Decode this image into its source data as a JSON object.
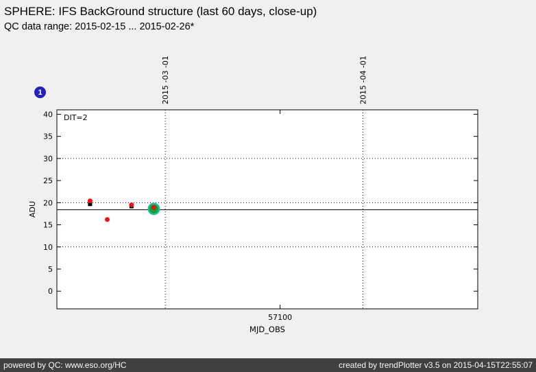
{
  "header": {
    "title": "SPHERE: IFS BackGround structure (last 60 days, close-up)",
    "subtitle": "QC data range: 2015-02-15 ... 2015-02-26*"
  },
  "badge": {
    "label": "1",
    "color": "#2222bb"
  },
  "footer": {
    "left": "powered by QC: www.eso.org/HC",
    "right": "created by trendPlotter v3.5 on 2015-04-15T22:55:07"
  },
  "chart_data": {
    "type": "scatter",
    "title": "",
    "xlabel": "MJD_OBS",
    "ylabel": "ADU",
    "annotation": "DIT=2",
    "xlim": [
      57065,
      57131
    ],
    "ylim": [
      -4,
      41
    ],
    "y_ticks": [
      0,
      5,
      10,
      15,
      20,
      25,
      30,
      35,
      40
    ],
    "x_ticks": [
      {
        "value": 57100,
        "label": "57100"
      }
    ],
    "h_gridlines": [
      10,
      20,
      30
    ],
    "mean_line_y": 18.4,
    "v_date_lines": [
      {
        "x": 57082,
        "label": "2015 -03 -01"
      },
      {
        "x": 57113,
        "label": "2015 -04 -01"
      }
    ],
    "grid": "dotted",
    "legend": "none",
    "series": [
      {
        "name": "black-squares",
        "marker": "square",
        "color": "#000000",
        "size": 6,
        "points": [
          {
            "x": 57070.2,
            "y": 19.7
          },
          {
            "x": 57076.7,
            "y": 19.2
          }
        ]
      },
      {
        "name": "latest-outer-ring",
        "marker": "circle",
        "color": "#2ab8a8",
        "size": 18,
        "points": [
          {
            "x": 57080.2,
            "y": 18.6
          }
        ]
      },
      {
        "name": "latest-inner",
        "marker": "circle",
        "color": "#00a830",
        "size": 13,
        "points": [
          {
            "x": 57080.2,
            "y": 18.6
          }
        ]
      },
      {
        "name": "red-points",
        "marker": "circle",
        "color": "#ee1111",
        "size": 7,
        "points": [
          {
            "x": 57070.2,
            "y": 20.4
          },
          {
            "x": 57072.9,
            "y": 16.2
          },
          {
            "x": 57076.7,
            "y": 19.5
          },
          {
            "x": 57080.2,
            "y": 18.9
          }
        ]
      }
    ]
  }
}
